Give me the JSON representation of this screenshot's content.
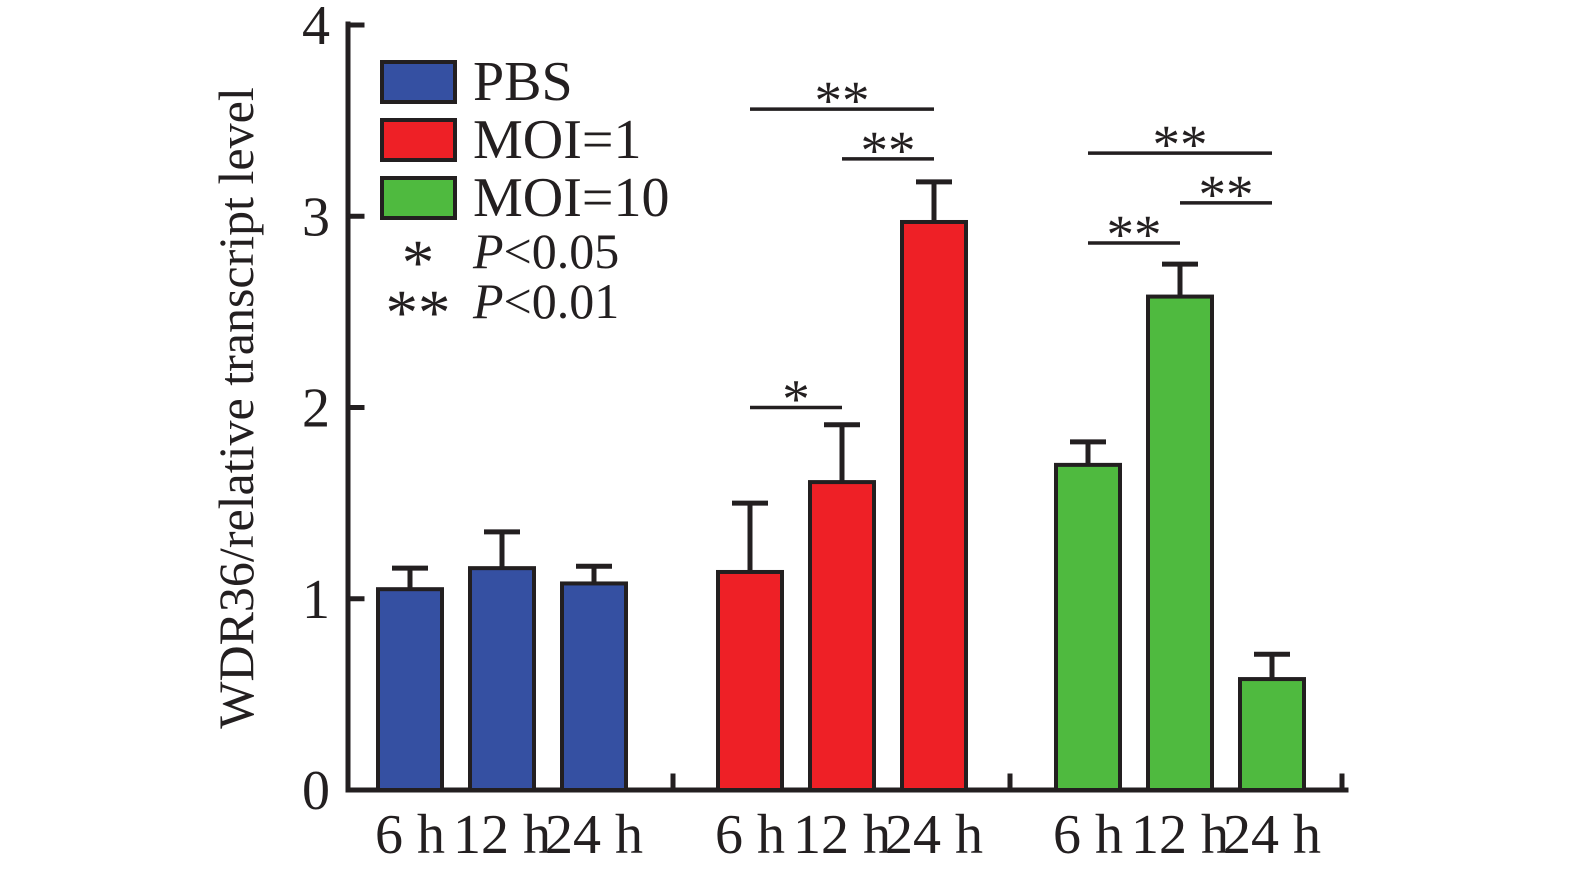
{
  "chart_data": {
    "type": "bar",
    "title": "",
    "xlabel": "",
    "ylabel": "WDR36/relative transcript level",
    "ylim": [
      0,
      4
    ],
    "yticks": [
      0,
      1,
      2,
      3,
      4
    ],
    "grid": "off",
    "legend_position": "top-left-inside",
    "categories": [
      "6 h",
      "12 h",
      "24 h"
    ],
    "series": [
      {
        "name": "PBS",
        "color": "#3550A2",
        "values": [
          1.05,
          1.16,
          1.08
        ],
        "errors": [
          0.11,
          0.19,
          0.09
        ]
      },
      {
        "name": "MOI=1",
        "color": "#EE2026",
        "values": [
          1.14,
          1.61,
          2.97
        ],
        "errors": [
          0.36,
          0.3,
          0.21
        ]
      },
      {
        "name": "MOI=10",
        "color": "#4FBA3F",
        "values": [
          1.7,
          2.58,
          0.58
        ],
        "errors": [
          0.12,
          0.17,
          0.13
        ]
      }
    ],
    "error_bars": "upper_only",
    "significance": [
      {
        "series": "MOI=1",
        "from": "6 h",
        "to": "12 h",
        "label": "*",
        "bracket_y": 2.0
      },
      {
        "series": "MOI=1",
        "from": "12 h",
        "to": "24 h",
        "label": "**",
        "bracket_y": 3.3
      },
      {
        "series": "MOI=1",
        "from": "6 h",
        "to": "24 h",
        "label": "**",
        "bracket_y": 3.56
      },
      {
        "series": "MOI=10",
        "from": "6 h",
        "to": "12 h",
        "label": "**",
        "bracket_y": 2.86
      },
      {
        "series": "MOI=10",
        "from": "12 h",
        "to": "24 h",
        "label": "**",
        "bracket_y": 3.07
      },
      {
        "series": "MOI=10",
        "from": "6 h",
        "to": "24 h",
        "label": "**",
        "bracket_y": 3.33
      }
    ],
    "legend_notes": [
      {
        "symbol": "*",
        "text": "P<0.05"
      },
      {
        "symbol": "**",
        "text": "P<0.01"
      }
    ],
    "colors": {
      "axis": "#231F20",
      "bar_outline": "#231F20"
    }
  }
}
